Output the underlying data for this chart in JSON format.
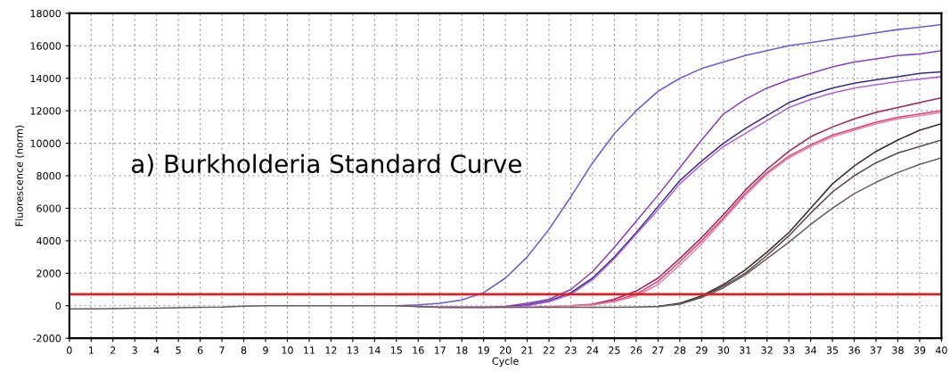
{
  "chart_data": {
    "type": "line",
    "xlabel": "Cycle",
    "ylabel": "Fluorescence (norm)",
    "annotations": [
      "a) Burkholderia Standard Curve"
    ],
    "x": [
      0,
      1,
      2,
      3,
      4,
      5,
      6,
      7,
      8,
      9,
      10,
      11,
      12,
      13,
      14,
      15,
      16,
      17,
      18,
      19,
      20,
      21,
      22,
      23,
      24,
      25,
      26,
      27,
      28,
      29,
      30,
      31,
      32,
      33,
      34,
      35,
      36,
      37,
      38,
      39,
      40
    ],
    "series": [
      {
        "color": "#6a5ad8",
        "values": [
          null,
          null,
          null,
          null,
          null,
          null,
          null,
          null,
          null,
          null,
          null,
          null,
          null,
          null,
          null,
          0,
          50,
          150,
          350,
          800,
          1700,
          3000,
          4700,
          6700,
          8800,
          10600,
          12000,
          13200,
          14000,
          14600,
          15000,
          15400,
          15700,
          16000,
          16200,
          16400,
          16600,
          16800,
          17000,
          17150,
          17300
        ]
      },
      {
        "color": "#8a3fc0",
        "values": [
          null,
          null,
          null,
          null,
          null,
          null,
          null,
          null,
          null,
          null,
          null,
          null,
          null,
          null,
          null,
          null,
          null,
          -80,
          -100,
          -100,
          -50,
          150,
          400,
          1000,
          2100,
          3600,
          5200,
          6800,
          8500,
          10200,
          11800,
          12700,
          13400,
          13900,
          14300,
          14700,
          15000,
          15200,
          15400,
          15500,
          15700
        ]
      },
      {
        "color": "#3a2a8a",
        "values": [
          null,
          null,
          null,
          null,
          null,
          null,
          null,
          null,
          null,
          null,
          null,
          null,
          null,
          null,
          null,
          null,
          null,
          null,
          null,
          null,
          -80,
          50,
          300,
          800,
          1700,
          3000,
          4500,
          6100,
          7700,
          8900,
          10000,
          10900,
          11700,
          12500,
          13000,
          13400,
          13700,
          13900,
          14100,
          14300,
          14400
        ]
      },
      {
        "color": "#b060d8",
        "values": [
          null,
          null,
          null,
          null,
          null,
          null,
          null,
          null,
          null,
          null,
          null,
          null,
          null,
          null,
          null,
          null,
          -50,
          -100,
          -100,
          -100,
          -80,
          0,
          250,
          700,
          1600,
          2900,
          4400,
          5900,
          7500,
          8700,
          9800,
          10600,
          11400,
          12200,
          12700,
          13100,
          13400,
          13600,
          13800,
          13950,
          14100
        ]
      },
      {
        "color": "#a0205a",
        "values": [
          null,
          null,
          null,
          null,
          null,
          null,
          null,
          null,
          null,
          null,
          null,
          null,
          null,
          null,
          null,
          null,
          null,
          null,
          null,
          null,
          null,
          null,
          null,
          0,
          100,
          400,
          900,
          1700,
          2900,
          4200,
          5600,
          7100,
          8400,
          9500,
          10400,
          11000,
          11500,
          11900,
          12200,
          12500,
          12800
        ]
      },
      {
        "color": "#e0407a",
        "values": [
          null,
          null,
          null,
          null,
          null,
          null,
          null,
          null,
          null,
          null,
          null,
          null,
          null,
          null,
          null,
          null,
          null,
          null,
          null,
          null,
          null,
          null,
          null,
          0,
          50,
          300,
          700,
          1500,
          2700,
          4000,
          5400,
          6900,
          8200,
          9200,
          9900,
          10500,
          10900,
          11300,
          11600,
          11800,
          12000
        ]
      },
      {
        "color": "#e880a8",
        "values": [
          null,
          null,
          null,
          null,
          null,
          null,
          null,
          null,
          null,
          null,
          null,
          null,
          null,
          null,
          null,
          null,
          -50,
          -100,
          -100,
          -100,
          -100,
          -80,
          -50,
          0,
          50,
          250,
          600,
          1300,
          2500,
          3800,
          5300,
          6800,
          8100,
          9100,
          9800,
          10400,
          10800,
          11200,
          11500,
          11700,
          11900
        ]
      },
      {
        "color": "#3a2a2a",
        "values": [
          null,
          null,
          null,
          null,
          null,
          null,
          null,
          null,
          null,
          null,
          null,
          null,
          null,
          null,
          null,
          null,
          null,
          null,
          null,
          null,
          null,
          null,
          null,
          null,
          null,
          null,
          null,
          -50,
          150,
          600,
          1300,
          2200,
          3300,
          4500,
          6000,
          7500,
          8600,
          9500,
          10200,
          10800,
          11200
        ]
      },
      {
        "color": "#5a4a4a",
        "values": [
          null,
          null,
          null,
          null,
          null,
          null,
          null,
          null,
          null,
          null,
          null,
          null,
          null,
          null,
          null,
          null,
          null,
          null,
          null,
          null,
          null,
          null,
          null,
          null,
          null,
          null,
          null,
          null,
          100,
          550,
          1200,
          2000,
          3100,
          4300,
          5700,
          7000,
          8000,
          8800,
          9400,
          9800,
          10200
        ]
      },
      {
        "color": "#6b5b5b",
        "values": [
          -200,
          -200,
          -180,
          -150,
          -150,
          -130,
          -100,
          -80,
          -30,
          0,
          0,
          0,
          0,
          0,
          0,
          0,
          -50,
          -100,
          -100,
          -100,
          -100,
          -100,
          -100,
          -100,
          -100,
          -100,
          -80,
          -50,
          100,
          500,
          1100,
          1900,
          2900,
          3900,
          5000,
          6000,
          6900,
          7600,
          8200,
          8700,
          9100
        ]
      }
    ],
    "ref_lines": [
      {
        "axis": "y",
        "value": 700,
        "color": "#e02020"
      }
    ],
    "xlim": [
      0,
      40
    ],
    "ylim": [
      -2000,
      18000
    ],
    "xticks": [
      0,
      1,
      2,
      3,
      4,
      5,
      6,
      7,
      8,
      9,
      10,
      11,
      12,
      13,
      14,
      15,
      16,
      17,
      18,
      19,
      20,
      21,
      22,
      23,
      24,
      25,
      26,
      27,
      28,
      29,
      30,
      31,
      32,
      33,
      34,
      35,
      36,
      37,
      38,
      39,
      40
    ],
    "yticks": [
      -2000,
      0,
      2000,
      4000,
      6000,
      8000,
      10000,
      12000,
      14000,
      16000,
      18000
    ],
    "grid": true,
    "marker": "none",
    "line_style": "solid"
  }
}
